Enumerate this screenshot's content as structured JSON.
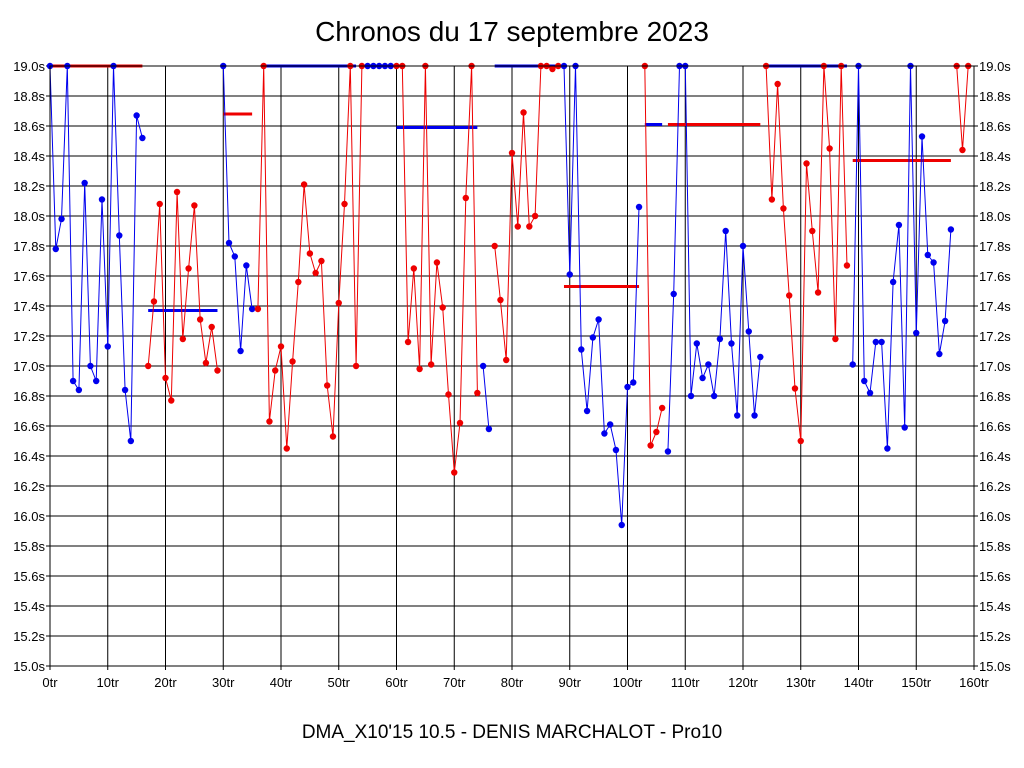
{
  "chart_data": {
    "type": "line",
    "title": "Chronos du 17 septembre 2023",
    "subtitle": "DMA_X10'15 10.5 - DENIS MARCHALOT - Pro10",
    "xlim": [
      0,
      160
    ],
    "ylim": [
      15.0,
      19.0
    ],
    "x_ticks": [
      0,
      10,
      20,
      30,
      40,
      50,
      60,
      70,
      80,
      90,
      100,
      110,
      120,
      130,
      140,
      150,
      160
    ],
    "x_tick_labels": [
      "0tr",
      "10tr",
      "20tr",
      "30tr",
      "40tr",
      "50tr",
      "60tr",
      "70tr",
      "80tr",
      "90tr",
      "100tr",
      "110tr",
      "120tr",
      "130tr",
      "140tr",
      "150tr",
      "160tr"
    ],
    "y_ticks": [
      15.0,
      15.2,
      15.4,
      15.6,
      15.8,
      16.0,
      16.2,
      16.4,
      16.6,
      16.8,
      17.0,
      17.2,
      17.4,
      17.6,
      17.8,
      18.0,
      18.2,
      18.4,
      18.6,
      18.8,
      19.0
    ],
    "y_tick_labels": [
      "15.0s",
      "15.2s",
      "15.4s",
      "15.6s",
      "15.8s",
      "16.0s",
      "16.2s",
      "16.4s",
      "16.6s",
      "16.8s",
      "17.0s",
      "17.2s",
      "17.4s",
      "17.6s",
      "17.8s",
      "18.0s",
      "18.2s",
      "18.4s",
      "18.6s",
      "18.8s",
      "19.0s"
    ],
    "grid": true,
    "colors": {
      "blue": "#0000ee",
      "red": "#ee0000"
    },
    "series": [
      {
        "color": "blue",
        "points": [
          [
            0,
            19.0
          ],
          [
            1,
            17.78
          ],
          [
            2,
            17.98
          ],
          [
            3,
            19.0
          ],
          [
            4,
            16.9
          ],
          [
            5,
            16.84
          ],
          [
            6,
            18.22
          ],
          [
            7,
            17.0
          ],
          [
            8,
            16.9
          ],
          [
            9,
            18.11
          ],
          [
            10,
            17.13
          ],
          [
            11,
            19.0
          ],
          [
            12,
            17.87
          ],
          [
            13,
            16.84
          ],
          [
            14,
            16.5
          ],
          [
            15,
            18.67
          ],
          [
            16,
            18.52
          ]
        ]
      },
      {
        "color": "red",
        "points": [
          [
            17,
            17.0
          ],
          [
            18,
            17.43
          ],
          [
            19,
            18.08
          ],
          [
            20,
            16.92
          ],
          [
            21,
            16.77
          ],
          [
            22,
            18.16
          ],
          [
            23,
            17.18
          ],
          [
            24,
            17.65
          ],
          [
            25,
            18.07
          ],
          [
            26,
            17.31
          ],
          [
            27,
            17.02
          ],
          [
            28,
            17.26
          ],
          [
            29,
            16.97
          ]
        ]
      },
      {
        "color": "blue",
        "points": [
          [
            30,
            19.0
          ],
          [
            31,
            17.82
          ],
          [
            32,
            17.73
          ],
          [
            33,
            17.1
          ],
          [
            34,
            17.67
          ],
          [
            35,
            17.38
          ]
        ]
      },
      {
        "color": "red",
        "points": [
          [
            36,
            17.38
          ],
          [
            37,
            19.0
          ],
          [
            38,
            16.63
          ],
          [
            39,
            16.97
          ],
          [
            40,
            17.13
          ],
          [
            41,
            16.45
          ],
          [
            42,
            17.03
          ],
          [
            43,
            17.56
          ],
          [
            44,
            18.21
          ],
          [
            45,
            17.75
          ],
          [
            46,
            17.62
          ],
          [
            47,
            17.7
          ],
          [
            48,
            16.87
          ],
          [
            49,
            16.53
          ],
          [
            50,
            17.42
          ],
          [
            51,
            18.08
          ],
          [
            52,
            19.0
          ],
          [
            53,
            17.0
          ],
          [
            54,
            19.0
          ]
        ]
      },
      {
        "color": "blue",
        "points": [
          [
            55,
            19.0
          ],
          [
            56,
            19.0
          ],
          [
            57,
            19.0
          ],
          [
            58,
            19.0
          ],
          [
            59,
            19.0
          ]
        ]
      },
      {
        "color": "red",
        "points": [
          [
            60,
            19.0
          ],
          [
            61,
            19.0
          ],
          [
            62,
            17.16
          ],
          [
            63,
            17.65
          ],
          [
            64,
            16.98
          ],
          [
            65,
            19.0
          ],
          [
            66,
            17.01
          ],
          [
            67,
            17.69
          ],
          [
            68,
            17.39
          ],
          [
            69,
            16.81
          ],
          [
            70,
            16.29
          ],
          [
            71,
            16.62
          ],
          [
            72,
            18.12
          ],
          [
            73,
            19.0
          ],
          [
            74,
            16.82
          ]
        ]
      },
      {
        "color": "blue",
        "points": [
          [
            75,
            17.0
          ],
          [
            76,
            16.58
          ]
        ]
      },
      {
        "color": "red",
        "points": [
          [
            77,
            17.8
          ],
          [
            78,
            17.44
          ],
          [
            79,
            17.04
          ],
          [
            80,
            18.42
          ],
          [
            81,
            17.93
          ],
          [
            82,
            18.69
          ],
          [
            83,
            17.93
          ],
          [
            84,
            18.0
          ],
          [
            85,
            19.0
          ],
          [
            86,
            19.0
          ],
          [
            87,
            18.98
          ],
          [
            88,
            19.0
          ]
        ]
      },
      {
        "color": "blue",
        "points": [
          [
            89,
            19.0
          ],
          [
            90,
            17.61
          ],
          [
            91,
            19.0
          ],
          [
            92,
            17.11
          ],
          [
            93,
            16.7
          ],
          [
            94,
            17.19
          ],
          [
            95,
            17.31
          ],
          [
            96,
            16.55
          ],
          [
            97,
            16.61
          ],
          [
            98,
            16.44
          ],
          [
            99,
            15.94
          ],
          [
            100,
            16.86
          ],
          [
            101,
            16.89
          ],
          [
            102,
            18.06
          ]
        ]
      },
      {
        "color": "red",
        "points": [
          [
            103,
            19.0
          ],
          [
            104,
            16.47
          ],
          [
            105,
            16.56
          ],
          [
            106,
            16.72
          ]
        ]
      },
      {
        "color": "blue",
        "points": [
          [
            107,
            16.43
          ],
          [
            108,
            17.48
          ],
          [
            109,
            19.0
          ],
          [
            110,
            19.0
          ],
          [
            111,
            16.8
          ],
          [
            112,
            17.15
          ],
          [
            113,
            16.92
          ],
          [
            114,
            17.01
          ],
          [
            115,
            16.8
          ],
          [
            116,
            17.18
          ],
          [
            117,
            17.9
          ],
          [
            118,
            17.15
          ],
          [
            119,
            16.67
          ],
          [
            120,
            17.8
          ],
          [
            121,
            17.23
          ],
          [
            122,
            16.67
          ],
          [
            123,
            17.06
          ]
        ]
      },
      {
        "color": "red",
        "points": [
          [
            124,
            19.0
          ],
          [
            125,
            18.11
          ],
          [
            126,
            18.88
          ],
          [
            127,
            18.05
          ],
          [
            128,
            17.47
          ],
          [
            129,
            16.85
          ],
          [
            130,
            16.5
          ],
          [
            131,
            18.35
          ],
          [
            132,
            17.9
          ],
          [
            133,
            17.49
          ],
          [
            134,
            19.0
          ],
          [
            135,
            18.45
          ],
          [
            136,
            17.18
          ],
          [
            137,
            19.0
          ],
          [
            138,
            17.67
          ]
        ]
      },
      {
        "color": "blue",
        "points": [
          [
            139,
            17.01
          ],
          [
            140,
            19.0
          ],
          [
            141,
            16.9
          ],
          [
            142,
            16.82
          ],
          [
            143,
            17.16
          ],
          [
            144,
            17.16
          ],
          [
            145,
            16.45
          ],
          [
            146,
            17.56
          ],
          [
            147,
            17.94
          ],
          [
            148,
            16.59
          ],
          [
            149,
            19.0
          ],
          [
            150,
            17.22
          ],
          [
            151,
            18.53
          ],
          [
            152,
            17.74
          ],
          [
            153,
            17.69
          ],
          [
            154,
            17.08
          ],
          [
            155,
            17.3
          ],
          [
            156,
            17.91
          ]
        ]
      },
      {
        "color": "red",
        "points": [
          [
            157,
            19.0
          ],
          [
            158,
            18.44
          ],
          [
            159,
            19.0
          ]
        ]
      }
    ],
    "reference_lines": [
      {
        "color": "red",
        "x1": 0,
        "x2": 16,
        "y": 19.0
      },
      {
        "color": "blue",
        "x1": 17,
        "x2": 29,
        "y": 17.37
      },
      {
        "color": "red",
        "x1": 30,
        "x2": 35,
        "y": 18.68
      },
      {
        "color": "blue",
        "x1": 37,
        "x2": 53,
        "y": 19.0
      },
      {
        "color": "blue",
        "x1": 60,
        "x2": 74,
        "y": 18.59
      },
      {
        "color": "blue",
        "x1": 77,
        "x2": 89,
        "y": 19.0
      },
      {
        "color": "red",
        "x1": 89,
        "x2": 102,
        "y": 17.53
      },
      {
        "color": "blue",
        "x1": 103,
        "x2": 106,
        "y": 18.61
      },
      {
        "color": "red",
        "x1": 107,
        "x2": 123,
        "y": 18.61
      },
      {
        "color": "blue",
        "x1": 124,
        "x2": 138,
        "y": 19.0
      },
      {
        "color": "red",
        "x1": 139,
        "x2": 156,
        "y": 18.37
      }
    ]
  }
}
